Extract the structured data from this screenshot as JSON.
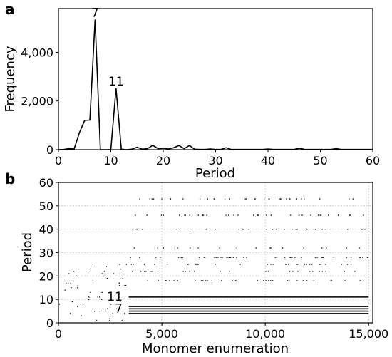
{
  "chart_data": [
    {
      "panel": "a",
      "type": "line",
      "xlabel": "Period",
      "ylabel": "Frequency",
      "xlim": [
        0,
        60
      ],
      "ylim": [
        0,
        5800
      ],
      "xticks": [
        0,
        10,
        20,
        30,
        40,
        50,
        60
      ],
      "xtick_labels": [
        "0",
        "10",
        "20",
        "30",
        "40",
        "50",
        "60"
      ],
      "yticks": [
        0,
        2000,
        4000
      ],
      "ytick_labels": [
        "0",
        "2,000",
        "4,000"
      ],
      "grid": false,
      "annotations": [
        {
          "text": "7",
          "x": 7,
          "y": 5350
        },
        {
          "text": "11",
          "x": 11,
          "y": 2520
        }
      ],
      "x": [
        0,
        1,
        2,
        3,
        4,
        5,
        6,
        7,
        8,
        9,
        10,
        11,
        12,
        13,
        14,
        15,
        16,
        17,
        18,
        19,
        20,
        21,
        22,
        23,
        24,
        25,
        26,
        27,
        28,
        29,
        30,
        31,
        32,
        33,
        34,
        35,
        36,
        37,
        38,
        39,
        40,
        41,
        42,
        43,
        44,
        45,
        46,
        47,
        48,
        49,
        50,
        51,
        52,
        53,
        54,
        55,
        56,
        57,
        58,
        59,
        60
      ],
      "values": [
        0,
        10,
        40,
        30,
        700,
        1200,
        1220,
        5350,
        0,
        0,
        0,
        2520,
        20,
        0,
        20,
        100,
        20,
        40,
        180,
        40,
        60,
        30,
        80,
        170,
        40,
        170,
        20,
        10,
        10,
        30,
        10,
        10,
        80,
        10,
        10,
        10,
        10,
        10,
        10,
        10,
        30,
        10,
        10,
        10,
        10,
        10,
        60,
        10,
        10,
        10,
        10,
        10,
        10,
        40,
        10,
        10,
        10,
        10,
        10,
        10,
        10
      ]
    },
    {
      "panel": "b",
      "type": "scatter",
      "xlabel": "Monomer enumeration",
      "ylabel": "Period",
      "xlim": [
        0,
        15200
      ],
      "ylim": [
        0,
        60
      ],
      "xticks": [
        0,
        5000,
        10000,
        15000
      ],
      "xtick_labels": [
        "0",
        "5,000",
        "10,000",
        "15,000"
      ],
      "yticks": [
        0,
        10,
        20,
        30,
        40,
        50,
        60
      ],
      "ytick_labels": [
        "0",
        "10",
        "20",
        "30",
        "40",
        "50",
        "60"
      ],
      "grid": true,
      "annotations": [
        {
          "text": "11",
          "x": 3100,
          "y": 11
        },
        {
          "text": "7",
          "x": 3100,
          "y": 6
        }
      ],
      "bands": [
        {
          "period": 4,
          "x_start": 3400,
          "x_end": 15000
        },
        {
          "period": 5,
          "x_start": 3400,
          "x_end": 15000
        },
        {
          "period": 6,
          "x_start": 3400,
          "x_end": 15000
        },
        {
          "period": 7,
          "x_start": 3400,
          "x_end": 15000
        },
        {
          "period": 11,
          "x_start": 3400,
          "x_end": 15000
        }
      ],
      "scattered_periods": [
        18,
        22,
        25,
        28,
        32,
        40,
        46,
        53
      ]
    }
  ]
}
